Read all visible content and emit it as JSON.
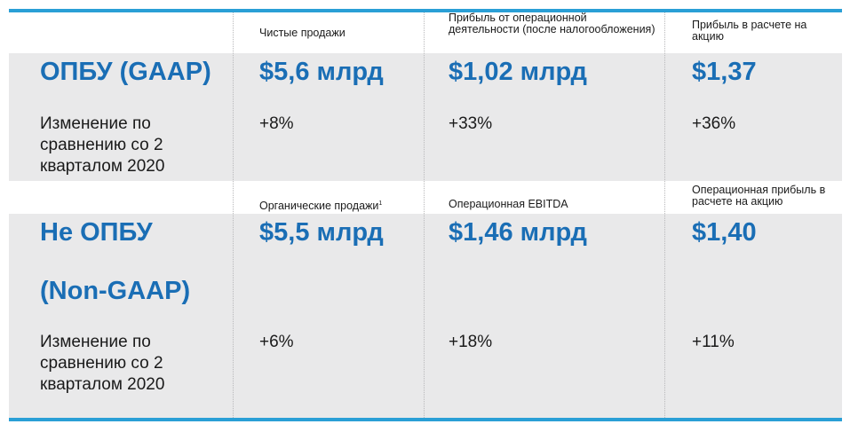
{
  "gaap": {
    "row_label": "ОПБУ (GAAP)",
    "change_label": "Изменение по сравнению со 2 кварталом 2020",
    "headers": {
      "net_sales": "Чистые продажи",
      "operating_profit": "Прибыль от операционной деятельности (после налогообложения)",
      "eps": "Прибыль в расчете на акцию"
    },
    "values": {
      "net_sales": "$5,6 млрд",
      "operating_profit": "$1,02 млрд",
      "eps": "$1,37"
    },
    "changes": {
      "net_sales": "+8%",
      "operating_profit": "+33%",
      "eps": "+36%"
    }
  },
  "non_gaap": {
    "row_label_line1": "Не ОПБУ",
    "row_label_line2": "(Non-GAAP)",
    "change_label": "Изменение по сравнению со 2 кварталом 2020",
    "headers": {
      "organic_sales": "Органические продажи",
      "organic_sales_footnote": "1",
      "ebitda": "Операционная EBITDA",
      "operating_eps": "Операционная прибыль в расчете на акцию"
    },
    "values": {
      "organic_sales": "$5,5 млрд",
      "ebitda": "$1,46 млрд",
      "operating_eps": "$1,40"
    },
    "changes": {
      "organic_sales": "+6%",
      "ebitda": "+18%",
      "operating_eps": "+11%"
    }
  },
  "colors": {
    "accent_blue": "#1a6eb5",
    "rule_blue": "#2a9fd6",
    "panel_gray": "#e9e9ea"
  }
}
